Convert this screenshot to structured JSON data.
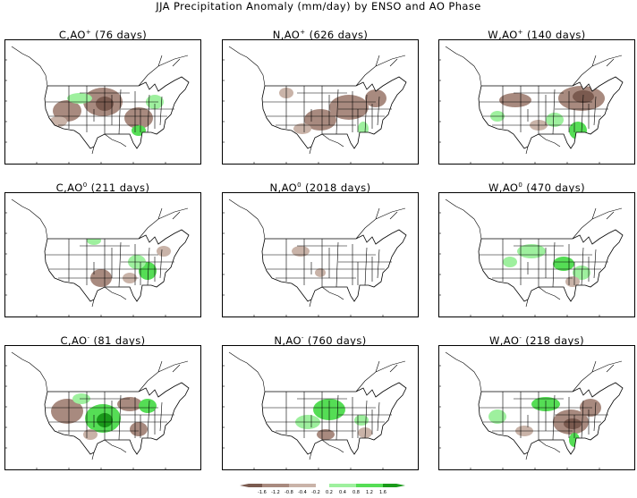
{
  "title": "JJA Precipitation Anomaly (mm/day) by ENSO and AO Phase",
  "colors": {
    "dry_strong": "#7a5a4f",
    "dry": "#a88a7f",
    "dry_light": "#c9b3a8",
    "wet_light": "#9ef09e",
    "wet": "#55dd55",
    "wet_strong": "#1a9a1a",
    "border": "#000000"
  },
  "panels": [
    {
      "id": "c-aop",
      "enso": "C",
      "ao": "+",
      "days": "(76 days)",
      "pattern": "dry-plains"
    },
    {
      "id": "n-aop",
      "enso": "N",
      "ao": "+",
      "days": "(626 days)",
      "pattern": "dry-east"
    },
    {
      "id": "w-aop",
      "enso": "W",
      "ao": "+",
      "days": "(140 days)",
      "pattern": "dry-northeast"
    },
    {
      "id": "c-ao0",
      "enso": "C",
      "ao": "0",
      "days": "(211 days)",
      "pattern": "mixed-weak"
    },
    {
      "id": "n-ao0",
      "enso": "N",
      "ao": "0",
      "days": "(2018 days)",
      "pattern": "near-zero"
    },
    {
      "id": "w-ao0",
      "enso": "W",
      "ao": "0",
      "days": "(470 days)",
      "pattern": "wet-weak"
    },
    {
      "id": "c-aom",
      "enso": "C",
      "ao": "-",
      "days": "(81 days)",
      "pattern": "wet-plains"
    },
    {
      "id": "n-aom",
      "enso": "N",
      "ao": "-",
      "days": "(760 days)",
      "pattern": "wet-central"
    },
    {
      "id": "w-aom",
      "enso": "W",
      "ao": "-",
      "days": "(218 days)",
      "pattern": "dry-southeast"
    }
  ],
  "colorbar": {
    "labels": [
      "-1.6",
      "-1.2",
      "-0.8",
      "-0.4",
      "-0.2",
      "0.2",
      "0.4",
      "0.8",
      "1.2",
      "1.6"
    ]
  }
}
